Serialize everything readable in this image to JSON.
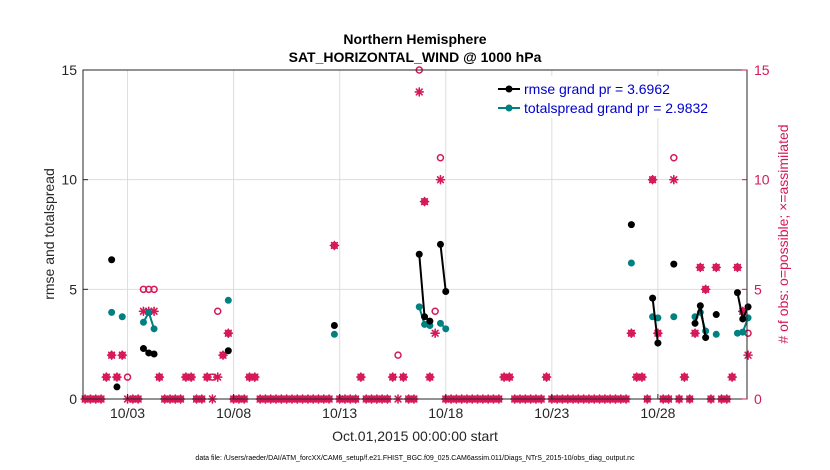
{
  "chart_data": {
    "type": "line",
    "title_line1": "Northern Hemisphere",
    "title_line2": "SAT_HORIZONTAL_WIND @ 1000 hPa",
    "xlabel": "Oct.01,2015 00:00:00 start",
    "ylabel_left": "rmse and totalspread",
    "ylabel_right": "# of obs: o=possible; ×=assimilated",
    "footnote": "data file: /Users/raeder/DAI/ATM_forcXX/CAM6_setup/f.e21.FHIST_BGC.f09_025.CAM6assim.011/Diags_NTrS_2015-10/obs_diag_output.nc",
    "x_ticks": [
      {
        "day": 3,
        "label": "10/03"
      },
      {
        "day": 8,
        "label": "10/08"
      },
      {
        "day": 13,
        "label": "10/13"
      },
      {
        "day": 18,
        "label": "10/18"
      },
      {
        "day": 23,
        "label": "10/23"
      },
      {
        "day": 28,
        "label": "10/28"
      }
    ],
    "xlim": [
      0.9,
      32.2
    ],
    "ylim_left": [
      0,
      15
    ],
    "ylim_right": [
      0,
      15
    ],
    "y_ticks_left": [
      "0",
      "5",
      "10",
      "15"
    ],
    "y_ticks_right": [
      "0",
      "5",
      "10",
      "15"
    ],
    "colors": {
      "rmse": "#000000",
      "spread": "#008080",
      "obs": "#d6185a",
      "grid": "#dddddd",
      "legend_text": "#0000cc"
    },
    "series": [
      {
        "name": "rmse grand pr = 3.6962",
        "key": "rmse",
        "segments": [
          [
            [
              2.25,
              6.35
            ]
          ],
          [
            [
              2.5,
              0.55
            ]
          ],
          [
            [
              3.75,
              2.3
            ],
            [
              4.0,
              2.1
            ],
            [
              4.25,
              2.05
            ]
          ],
          [
            [
              7.75,
              2.2
            ]
          ],
          [
            [
              12.75,
              3.35
            ]
          ],
          [
            [
              16.75,
              6.6
            ],
            [
              17.0,
              3.75
            ],
            [
              17.25,
              3.55
            ]
          ],
          [
            [
              17.75,
              7.05
            ],
            [
              18.0,
              4.9
            ]
          ],
          [
            [
              26.75,
              7.95
            ]
          ],
          [
            [
              27.75,
              4.6
            ],
            [
              28.0,
              2.55
            ]
          ],
          [
            [
              28.75,
              6.15
            ]
          ],
          [
            [
              29.75,
              3.45
            ],
            [
              30.0,
              4.25
            ],
            [
              30.25,
              2.8
            ]
          ],
          [
            [
              30.75,
              3.85
            ]
          ],
          [
            [
              31.75,
              4.85
            ],
            [
              32.0,
              3.65
            ],
            [
              32.25,
              4.2
            ]
          ]
        ]
      },
      {
        "name": "totalspread grand pr = 2.9832",
        "key": "spread",
        "segments": [
          [
            [
              2.25,
              3.95
            ]
          ],
          [
            [
              2.75,
              3.75
            ]
          ],
          [
            [
              3.75,
              3.5
            ],
            [
              4.0,
              3.95
            ],
            [
              4.25,
              3.2
            ]
          ],
          [
            [
              7.75,
              4.5
            ]
          ],
          [
            [
              12.75,
              2.95
            ]
          ],
          [
            [
              16.75,
              4.2
            ],
            [
              17.0,
              3.4
            ],
            [
              17.25,
              3.35
            ]
          ],
          [
            [
              17.75,
              3.45
            ],
            [
              18.0,
              3.2
            ]
          ],
          [
            [
              26.75,
              6.2
            ]
          ],
          [
            [
              27.75,
              3.75
            ],
            [
              28.0,
              3.7
            ]
          ],
          [
            [
              28.75,
              3.75
            ]
          ],
          [
            [
              29.75,
              3.75
            ],
            [
              30.0,
              3.95
            ],
            [
              30.25,
              3.1
            ]
          ],
          [
            [
              30.75,
              2.95
            ]
          ],
          [
            [
              31.75,
              3.0
            ],
            [
              32.0,
              3.05
            ],
            [
              32.25,
              3.7
            ]
          ]
        ]
      }
    ],
    "obs_possible": [
      [
        1.0,
        0
      ],
      [
        1.25,
        0
      ],
      [
        1.5,
        0
      ],
      [
        1.75,
        0
      ],
      [
        2.0,
        1
      ],
      [
        2.25,
        2
      ],
      [
        2.5,
        1
      ],
      [
        2.75,
        2
      ],
      [
        3.0,
        1
      ],
      [
        3.25,
        0
      ],
      [
        3.5,
        0
      ],
      [
        3.75,
        5
      ],
      [
        4.0,
        5
      ],
      [
        4.25,
        5
      ],
      [
        4.5,
        1
      ],
      [
        4.75,
        0
      ],
      [
        5.0,
        0
      ],
      [
        5.25,
        0
      ],
      [
        5.5,
        0
      ],
      [
        5.75,
        1
      ],
      [
        6.0,
        1
      ],
      [
        6.25,
        0
      ],
      [
        6.5,
        0
      ],
      [
        6.75,
        1
      ],
      [
        7.0,
        1
      ],
      [
        7.25,
        4
      ],
      [
        7.5,
        2
      ],
      [
        7.75,
        3
      ],
      [
        8.0,
        0
      ],
      [
        8.25,
        0
      ],
      [
        8.5,
        0
      ],
      [
        8.75,
        1
      ],
      [
        9.0,
        1
      ],
      [
        9.25,
        0
      ],
      [
        9.5,
        0
      ],
      [
        9.75,
        0
      ],
      [
        10.0,
        0
      ],
      [
        10.25,
        0
      ],
      [
        10.5,
        0
      ],
      [
        10.75,
        0
      ],
      [
        11.0,
        0
      ],
      [
        11.25,
        0
      ],
      [
        11.5,
        0
      ],
      [
        11.75,
        0
      ],
      [
        12.0,
        0
      ],
      [
        12.25,
        0
      ],
      [
        12.5,
        0
      ],
      [
        12.75,
        7
      ],
      [
        13.0,
        0
      ],
      [
        13.25,
        0
      ],
      [
        13.5,
        0
      ],
      [
        13.75,
        0
      ],
      [
        14.0,
        1
      ],
      [
        14.25,
        0
      ],
      [
        14.5,
        0
      ],
      [
        14.75,
        0
      ],
      [
        15.0,
        0
      ],
      [
        15.25,
        0
      ],
      [
        15.5,
        1
      ],
      [
        15.75,
        2
      ],
      [
        16.0,
        1
      ],
      [
        16.25,
        0
      ],
      [
        16.5,
        0
      ],
      [
        16.75,
        15
      ],
      [
        17.0,
        9
      ],
      [
        17.25,
        1
      ],
      [
        17.5,
        4
      ],
      [
        17.75,
        11
      ],
      [
        18.0,
        0
      ],
      [
        18.25,
        0
      ],
      [
        18.5,
        0
      ],
      [
        18.75,
        0
      ],
      [
        19.0,
        0
      ],
      [
        19.25,
        0
      ],
      [
        19.5,
        0
      ],
      [
        19.75,
        0
      ],
      [
        20.0,
        0
      ],
      [
        20.25,
        0
      ],
      [
        20.5,
        0
      ],
      [
        20.75,
        1
      ],
      [
        21.0,
        1
      ],
      [
        21.25,
        0
      ],
      [
        21.5,
        0
      ],
      [
        21.75,
        0
      ],
      [
        22.0,
        0
      ],
      [
        22.25,
        0
      ],
      [
        22.5,
        0
      ],
      [
        22.75,
        1
      ],
      [
        23.0,
        0
      ],
      [
        23.25,
        0
      ],
      [
        23.5,
        0
      ],
      [
        23.75,
        0
      ],
      [
        24.0,
        0
      ],
      [
        24.25,
        0
      ],
      [
        24.5,
        0
      ],
      [
        24.75,
        0
      ],
      [
        25.0,
        0
      ],
      [
        25.25,
        0
      ],
      [
        25.5,
        0
      ],
      [
        25.75,
        0
      ],
      [
        26.0,
        0
      ],
      [
        26.25,
        0
      ],
      [
        26.5,
        0
      ],
      [
        26.75,
        3
      ],
      [
        27.0,
        1
      ],
      [
        27.25,
        1
      ],
      [
        27.5,
        0
      ],
      [
        27.75,
        10
      ],
      [
        28.0,
        3
      ],
      [
        28.25,
        0
      ],
      [
        28.5,
        0
      ],
      [
        28.75,
        11
      ],
      [
        29.0,
        0
      ],
      [
        29.25,
        1
      ],
      [
        29.5,
        0
      ],
      [
        29.75,
        3
      ],
      [
        30.0,
        6
      ],
      [
        30.25,
        5
      ],
      [
        30.5,
        0
      ],
      [
        30.75,
        6
      ],
      [
        31.0,
        0
      ],
      [
        31.25,
        0
      ],
      [
        31.5,
        1
      ],
      [
        31.75,
        6
      ],
      [
        32.0,
        4
      ],
      [
        32.25,
        3
      ]
    ],
    "obs_assimilated": [
      [
        1.0,
        0
      ],
      [
        1.25,
        0
      ],
      [
        1.5,
        0
      ],
      [
        1.75,
        0
      ],
      [
        2.0,
        1
      ],
      [
        2.25,
        2
      ],
      [
        2.5,
        1
      ],
      [
        2.75,
        2
      ],
      [
        3.0,
        0
      ],
      [
        3.25,
        0
      ],
      [
        3.5,
        0
      ],
      [
        3.75,
        4
      ],
      [
        4.0,
        4
      ],
      [
        4.25,
        4
      ],
      [
        4.5,
        1
      ],
      [
        4.75,
        0
      ],
      [
        5.0,
        0
      ],
      [
        5.25,
        0
      ],
      [
        5.5,
        0
      ],
      [
        5.75,
        1
      ],
      [
        6.0,
        1
      ],
      [
        6.25,
        0
      ],
      [
        6.5,
        0
      ],
      [
        6.75,
        1
      ],
      [
        7.0,
        0
      ],
      [
        7.25,
        1
      ],
      [
        7.5,
        2
      ],
      [
        7.75,
        3
      ],
      [
        8.0,
        0
      ],
      [
        8.25,
        0
      ],
      [
        8.5,
        0
      ],
      [
        8.75,
        1
      ],
      [
        9.0,
        1
      ],
      [
        9.25,
        0
      ],
      [
        9.5,
        0
      ],
      [
        9.75,
        0
      ],
      [
        10.0,
        0
      ],
      [
        10.25,
        0
      ],
      [
        10.5,
        0
      ],
      [
        10.75,
        0
      ],
      [
        11.0,
        0
      ],
      [
        11.25,
        0
      ],
      [
        11.5,
        0
      ],
      [
        11.75,
        0
      ],
      [
        12.0,
        0
      ],
      [
        12.25,
        0
      ],
      [
        12.5,
        0
      ],
      [
        12.75,
        7
      ],
      [
        13.0,
        0
      ],
      [
        13.25,
        0
      ],
      [
        13.5,
        0
      ],
      [
        13.75,
        0
      ],
      [
        14.0,
        1
      ],
      [
        14.25,
        0
      ],
      [
        14.5,
        0
      ],
      [
        14.75,
        0
      ],
      [
        15.0,
        0
      ],
      [
        15.25,
        0
      ],
      [
        15.5,
        1
      ],
      [
        15.75,
        0
      ],
      [
        16.0,
        1
      ],
      [
        16.25,
        0
      ],
      [
        16.5,
        0
      ],
      [
        16.75,
        14
      ],
      [
        17.0,
        9
      ],
      [
        17.25,
        1
      ],
      [
        17.5,
        3
      ],
      [
        17.75,
        10
      ],
      [
        18.0,
        0
      ],
      [
        18.25,
        0
      ],
      [
        18.5,
        0
      ],
      [
        18.75,
        0
      ],
      [
        19.0,
        0
      ],
      [
        19.25,
        0
      ],
      [
        19.5,
        0
      ],
      [
        19.75,
        0
      ],
      [
        20.0,
        0
      ],
      [
        20.25,
        0
      ],
      [
        20.5,
        0
      ],
      [
        20.75,
        1
      ],
      [
        21.0,
        1
      ],
      [
        21.25,
        0
      ],
      [
        21.5,
        0
      ],
      [
        21.75,
        0
      ],
      [
        22.0,
        0
      ],
      [
        22.25,
        0
      ],
      [
        22.5,
        0
      ],
      [
        22.75,
        1
      ],
      [
        23.0,
        0
      ],
      [
        23.25,
        0
      ],
      [
        23.5,
        0
      ],
      [
        23.75,
        0
      ],
      [
        24.0,
        0
      ],
      [
        24.25,
        0
      ],
      [
        24.5,
        0
      ],
      [
        24.75,
        0
      ],
      [
        25.0,
        0
      ],
      [
        25.25,
        0
      ],
      [
        25.5,
        0
      ],
      [
        25.75,
        0
      ],
      [
        26.0,
        0
      ],
      [
        26.25,
        0
      ],
      [
        26.5,
        0
      ],
      [
        26.75,
        3
      ],
      [
        27.0,
        1
      ],
      [
        27.25,
        1
      ],
      [
        27.5,
        0
      ],
      [
        27.75,
        10
      ],
      [
        28.0,
        3
      ],
      [
        28.25,
        0
      ],
      [
        28.5,
        0
      ],
      [
        28.75,
        10
      ],
      [
        29.0,
        0
      ],
      [
        29.25,
        1
      ],
      [
        29.5,
        0
      ],
      [
        29.75,
        3
      ],
      [
        30.0,
        6
      ],
      [
        30.25,
        5
      ],
      [
        30.5,
        0
      ],
      [
        30.75,
        6
      ],
      [
        31.0,
        0
      ],
      [
        31.25,
        0
      ],
      [
        31.5,
        1
      ],
      [
        31.75,
        6
      ],
      [
        32.0,
        4
      ],
      [
        32.25,
        2
      ]
    ]
  }
}
